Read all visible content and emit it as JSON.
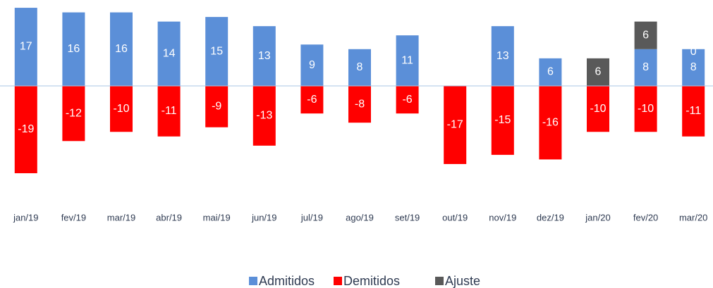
{
  "chart_data": {
    "type": "stacked_bar",
    "categories": [
      "jan/19",
      "fev/19",
      "mar/19",
      "abr/19",
      "mai/19",
      "jun/19",
      "jul/19",
      "ago/19",
      "set/19",
      "out/19",
      "nov/19",
      "dez/19",
      "jan/20",
      "fev/20",
      "mar/20"
    ],
    "series": [
      {
        "name": "Admitidos",
        "color": "#5b8fd8",
        "values": [
          17,
          16,
          16,
          14,
          15,
          13,
          9,
          8,
          11,
          0,
          13,
          6,
          0,
          8,
          8
        ]
      },
      {
        "name": "Demitidos",
        "color": "#ff0000",
        "values": [
          -19,
          -12,
          -10,
          -11,
          -9,
          -13,
          -6,
          -8,
          -6,
          -17,
          -15,
          -16,
          -10,
          -10,
          -11
        ]
      },
      {
        "name": "Ajuste",
        "color": "#595959",
        "values": [
          null,
          null,
          null,
          null,
          null,
          null,
          null,
          null,
          null,
          null,
          null,
          null,
          6,
          6,
          0
        ]
      }
    ],
    "legend": "bottom"
  }
}
